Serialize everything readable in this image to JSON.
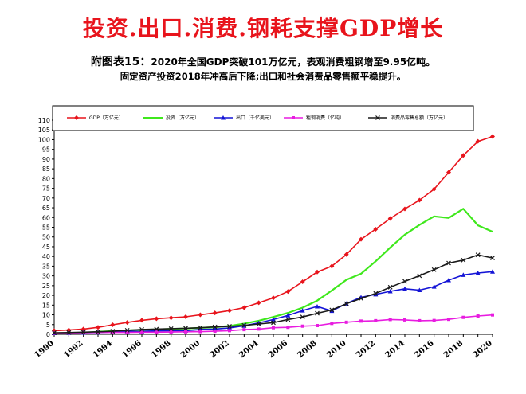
{
  "header": {
    "title": "投资.出口.消费.钢耗支撑GDP增长",
    "subtitle_lead": "附图表15：",
    "subtitle_rest": "2020年全国GDP突破101万亿元，表观消费粗钢增至9.95亿吨。",
    "subtitle2": "固定资产投资2018年冲高后下降;出口和社会消费品零售额平稳提升。"
  },
  "chart_data": {
    "type": "line",
    "ylim": [
      0,
      110
    ],
    "yticks": [
      0,
      5,
      10,
      15,
      20,
      25,
      30,
      35,
      40,
      45,
      50,
      55,
      60,
      65,
      70,
      75,
      80,
      85,
      90,
      95,
      100,
      105,
      110
    ],
    "x": [
      1990,
      1991,
      1992,
      1993,
      1994,
      1995,
      1996,
      1997,
      1998,
      1999,
      2000,
      2001,
      2002,
      2003,
      2004,
      2005,
      2006,
      2007,
      2008,
      2009,
      2010,
      2011,
      2012,
      2013,
      2014,
      2015,
      2016,
      2017,
      2018,
      2019,
      2020
    ],
    "xtick_labels": [
      "1990",
      "1992",
      "1994",
      "1996",
      "1998",
      "2000",
      "2002",
      "2004",
      "2006",
      "2008",
      "2010",
      "2012",
      "2014",
      "2016",
      "2018",
      "2020"
    ],
    "series": [
      {
        "name": "GDP（万亿元）",
        "color": "#e8141c",
        "marker": "diamond",
        "values": [
          1.9,
          2.2,
          2.7,
          3.6,
          4.9,
          6.1,
          7.2,
          8.0,
          8.5,
          9.0,
          10.0,
          11.0,
          12.2,
          13.7,
          16.2,
          18.7,
          22.0,
          27.0,
          32.0,
          35.0,
          41.0,
          48.8,
          54.0,
          59.5,
          64.4,
          68.9,
          74.6,
          83.2,
          91.9,
          99.1,
          101.6
        ]
      },
      {
        "name": "投资（万亿元）",
        "color": "#3fe81c",
        "marker": "none",
        "values": [
          0.5,
          0.6,
          0.8,
          1.3,
          1.7,
          2.0,
          2.3,
          2.5,
          2.8,
          3.0,
          3.3,
          3.7,
          4.3,
          5.5,
          7.0,
          8.9,
          11.0,
          13.7,
          17.3,
          22.5,
          28.0,
          31.1,
          37.5,
          44.6,
          51.2,
          56.2,
          60.6,
          59.8,
          64.5,
          56.0,
          52.7
        ]
      },
      {
        "name": "出口（千亿美元）",
        "color": "#1414d6",
        "marker": "triangle",
        "values": [
          0.6,
          0.7,
          0.8,
          0.9,
          1.2,
          1.5,
          1.5,
          1.8,
          1.8,
          1.9,
          2.5,
          2.7,
          3.3,
          4.4,
          5.9,
          7.6,
          9.7,
          12.2,
          14.3,
          12.0,
          15.8,
          19.0,
          20.5,
          22.1,
          23.4,
          22.7,
          24.5,
          27.8,
          30.5,
          31.5,
          32.2
        ]
      },
      {
        "name": "粗钢消费（亿吨）",
        "color": "#e81ce0",
        "marker": "square",
        "values": [
          0.6,
          0.7,
          0.8,
          1.0,
          1.0,
          1.0,
          1.1,
          1.1,
          1.2,
          1.3,
          1.4,
          1.6,
          1.9,
          2.4,
          2.7,
          3.4,
          3.6,
          4.2,
          4.5,
          5.6,
          6.2,
          6.8,
          7.0,
          7.6,
          7.4,
          7.0,
          7.1,
          7.7,
          8.7,
          9.4,
          9.95
        ]
      },
      {
        "name": "消费品零售总额（万亿元）",
        "color": "#1a1a1a",
        "marker": "x",
        "values": [
          0.8,
          0.9,
          1.1,
          1.3,
          1.6,
          2.1,
          2.5,
          2.7,
          2.9,
          3.1,
          3.4,
          3.8,
          4.1,
          4.6,
          5.3,
          6.0,
          7.6,
          8.9,
          10.8,
          12.5,
          15.7,
          18.4,
          21.0,
          24.2,
          27.2,
          30.1,
          33.2,
          36.6,
          38.1,
          40.8,
          39.2
        ]
      }
    ]
  }
}
